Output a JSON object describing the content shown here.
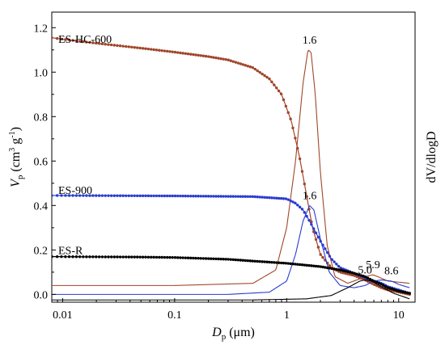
{
  "chart_data": {
    "type": "line",
    "xlabel": {
      "main": "D",
      "sub": "p",
      "unit": " (μm)"
    },
    "ylabel_left": {
      "main": "V",
      "sub": "p",
      "unit_pre": " (cm",
      "unit_sup1": "3",
      "unit_mid": " g",
      "unit_sup2": "-1",
      "unit_post": ")"
    },
    "ylabel_right": "dV/dlogD",
    "x_scale": "log",
    "xlim": [
      0.008,
      14
    ],
    "ylim": [
      -0.035,
      1.27
    ],
    "x_ticks": [
      {
        "value": 0.01,
        "label": "0.01"
      },
      {
        "value": 0.1,
        "label": "0.1"
      },
      {
        "value": 1,
        "label": "1"
      },
      {
        "value": 10,
        "label": "10"
      }
    ],
    "y_ticks": [
      {
        "value": 0.0,
        "label": "0.0"
      },
      {
        "value": 0.2,
        "label": "0.2"
      },
      {
        "value": 0.4,
        "label": "0.4"
      },
      {
        "value": 0.6,
        "label": "0.6"
      },
      {
        "value": 0.8,
        "label": "0.8"
      },
      {
        "value": 1.0,
        "label": "1.0"
      },
      {
        "value": 1.2,
        "label": "1.2"
      }
    ],
    "series": [
      {
        "name": "ES-HC-600",
        "color": "#a0462a",
        "dot_color": "#a0462a",
        "cumulative": [
          [
            0.008,
            1.155
          ],
          [
            0.01,
            1.148
          ],
          [
            0.02,
            1.13
          ],
          [
            0.05,
            1.108
          ],
          [
            0.1,
            1.09
          ],
          [
            0.2,
            1.07
          ],
          [
            0.3,
            1.055
          ],
          [
            0.5,
            1.02
          ],
          [
            0.7,
            0.97
          ],
          [
            0.9,
            0.9
          ],
          [
            1.1,
            0.78
          ],
          [
            1.3,
            0.62
          ],
          [
            1.5,
            0.45
          ],
          [
            1.7,
            0.3
          ],
          [
            2.0,
            0.18
          ],
          [
            2.5,
            0.12
          ],
          [
            3,
            0.1
          ],
          [
            4,
            0.085
          ],
          [
            5,
            0.065
          ],
          [
            6,
            0.045
          ],
          [
            7,
            0.03
          ],
          [
            8,
            0.02
          ],
          [
            10,
            0.01
          ],
          [
            12.5,
            0.0
          ]
        ],
        "distribution": [
          [
            0.008,
            0.04
          ],
          [
            0.1,
            0.04
          ],
          [
            0.5,
            0.05
          ],
          [
            0.8,
            0.11
          ],
          [
            1.0,
            0.3
          ],
          [
            1.2,
            0.6
          ],
          [
            1.4,
            0.95
          ],
          [
            1.55,
            1.1
          ],
          [
            1.65,
            1.09
          ],
          [
            1.8,
            0.9
          ],
          [
            2.0,
            0.55
          ],
          [
            2.3,
            0.22
          ],
          [
            2.7,
            0.08
          ],
          [
            3.5,
            0.05
          ],
          [
            4.5,
            0.07
          ],
          [
            5.5,
            0.085
          ],
          [
            5.9,
            0.088
          ],
          [
            6.5,
            0.08
          ],
          [
            8,
            0.06
          ],
          [
            10,
            0.055
          ],
          [
            12.5,
            0.05
          ]
        ],
        "peaks": [
          {
            "x": 1.6,
            "label": "1.6",
            "y": 1.1
          },
          {
            "x": 5.9,
            "label": "5.9",
            "y": 0.088
          }
        ]
      },
      {
        "name": "ES-900",
        "color": "#2a3ccf",
        "dot_color": "#2a3ccf",
        "cumulative": [
          [
            0.008,
            0.445
          ],
          [
            0.01,
            0.445
          ],
          [
            0.1,
            0.443
          ],
          [
            0.5,
            0.44
          ],
          [
            1.0,
            0.43
          ],
          [
            1.2,
            0.41
          ],
          [
            1.4,
            0.38
          ],
          [
            1.6,
            0.33
          ],
          [
            2.0,
            0.24
          ],
          [
            2.5,
            0.16
          ],
          [
            3,
            0.12
          ],
          [
            4,
            0.095
          ],
          [
            5,
            0.075
          ],
          [
            6,
            0.06
          ],
          [
            7,
            0.05
          ],
          [
            8,
            0.035
          ],
          [
            10,
            0.02
          ],
          [
            12.5,
            0.005
          ]
        ],
        "distribution": [
          [
            0.008,
            0.0
          ],
          [
            0.3,
            0.0
          ],
          [
            0.7,
            0.01
          ],
          [
            1.0,
            0.06
          ],
          [
            1.2,
            0.18
          ],
          [
            1.4,
            0.33
          ],
          [
            1.6,
            0.4
          ],
          [
            1.75,
            0.38
          ],
          [
            2.0,
            0.25
          ],
          [
            2.4,
            0.1
          ],
          [
            3,
            0.04
          ],
          [
            4,
            0.03
          ],
          [
            5,
            0.04
          ],
          [
            6,
            0.06
          ],
          [
            7,
            0.065
          ],
          [
            8.6,
            0.06
          ],
          [
            10,
            0.045
          ],
          [
            12.5,
            0.03
          ]
        ],
        "peaks": [
          {
            "x": 1.6,
            "label": "1.6",
            "y": 0.4
          },
          {
            "x": 8.6,
            "label": "8.6",
            "y": 0.062
          }
        ]
      },
      {
        "name": "ES-R",
        "color": "#000000",
        "dot_color": "#000000",
        "cumulative": [
          [
            0.008,
            0.17
          ],
          [
            0.05,
            0.168
          ],
          [
            0.1,
            0.166
          ],
          [
            0.3,
            0.158
          ],
          [
            0.5,
            0.15
          ],
          [
            1.0,
            0.14
          ],
          [
            2.0,
            0.125
          ],
          [
            3.0,
            0.11
          ],
          [
            4.0,
            0.095
          ],
          [
            5.0,
            0.08
          ],
          [
            6,
            0.06
          ],
          [
            7,
            0.045
          ],
          [
            8,
            0.03
          ],
          [
            10,
            0.015
          ],
          [
            12.5,
            0.005
          ]
        ],
        "distribution": [
          [
            0.008,
            -0.025
          ],
          [
            0.5,
            -0.025
          ],
          [
            1.5,
            -0.02
          ],
          [
            2.5,
            -0.005
          ],
          [
            3.5,
            0.03
          ],
          [
            4.5,
            0.06
          ],
          [
            5.0,
            0.065
          ],
          [
            5.7,
            0.06
          ],
          [
            7,
            0.035
          ],
          [
            9,
            0.005
          ],
          [
            12.5,
            -0.02
          ]
        ],
        "peaks": [
          {
            "x": 5.0,
            "label": "5.0",
            "y": 0.065
          }
        ]
      }
    ],
    "grid": false,
    "legend": "inline labels at left"
  }
}
